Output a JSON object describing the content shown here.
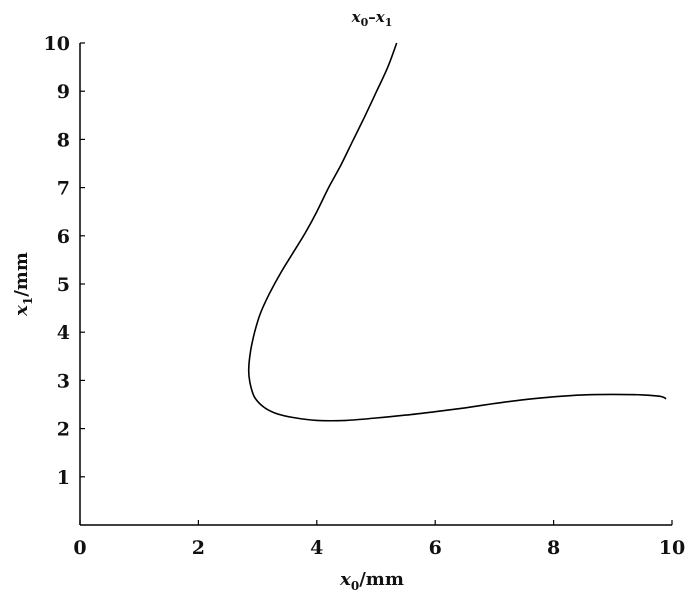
{
  "chart_data": {
    "type": "line",
    "title": {
      "var": "x",
      "sub0": "0",
      "dash": "–",
      "var2": "x",
      "sub1": "1"
    },
    "xlabel": {
      "var": "x",
      "sub": "0",
      "unit": "/mm"
    },
    "ylabel": {
      "var": "x",
      "sub": "1",
      "unit": "/mm"
    },
    "xlim": [
      0,
      10
    ],
    "ylim": [
      0,
      10
    ],
    "xticks": [
      "0",
      "2",
      "4",
      "6",
      "8",
      "10"
    ],
    "yticks": [
      "1",
      "2",
      "3",
      "4",
      "5",
      "6",
      "7",
      "8",
      "9",
      "10"
    ],
    "grid": false,
    "series": [
      {
        "color": "#000000",
        "x": [
          5.35,
          5.2,
          5.0,
          4.8,
          4.6,
          4.4,
          4.2,
          4.0,
          3.8,
          3.6,
          3.4,
          3.2,
          3.05,
          2.95,
          2.88,
          2.85,
          2.88,
          2.95,
          3.1,
          3.3,
          3.6,
          4.0,
          4.5,
          5.0,
          5.5,
          6.0,
          6.5,
          7.0,
          7.5,
          8.0,
          8.5,
          9.0,
          9.5,
          9.8,
          9.9
        ],
        "y": [
          10.0,
          9.5,
          8.97,
          8.45,
          7.95,
          7.45,
          7.0,
          6.5,
          6.05,
          5.65,
          5.25,
          4.8,
          4.4,
          4.0,
          3.6,
          3.2,
          2.9,
          2.65,
          2.45,
          2.32,
          2.23,
          2.17,
          2.17,
          2.22,
          2.28,
          2.35,
          2.43,
          2.52,
          2.6,
          2.66,
          2.7,
          2.71,
          2.7,
          2.67,
          2.62
        ]
      }
    ]
  }
}
